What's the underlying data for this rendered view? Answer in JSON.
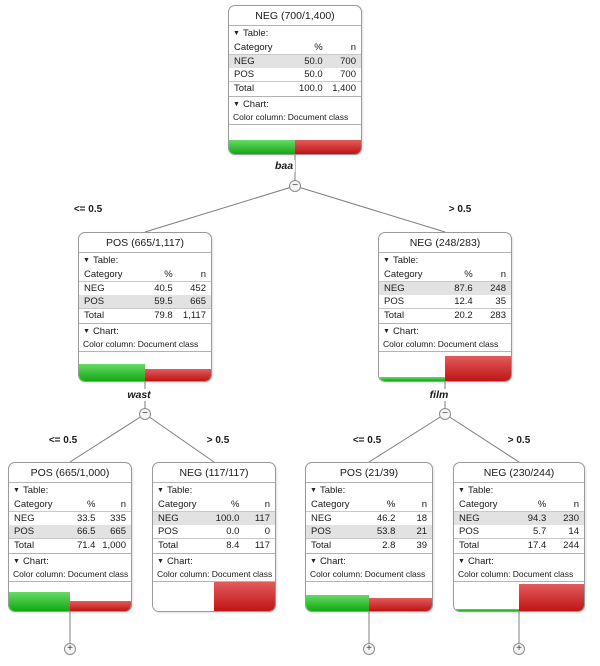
{
  "labels": {
    "table_section": "Table:",
    "chart_section": "Chart:",
    "color_column": "Color column: Document class",
    "col_category": "Category",
    "col_percent": "%",
    "col_n": "n",
    "total_row": "Total"
  },
  "glyphs": {
    "section_triangle": "▼",
    "collapse_minus": "−",
    "expand_plus": "+"
  },
  "colors": {
    "pos_bar_green": "#12a812",
    "neg_bar_red": "#bf1414",
    "highlight_row": "#e2e2e2"
  },
  "split_labels": [
    "baa",
    "wast",
    "film"
  ],
  "branch_labels": [
    "<= 0.5",
    "> 0.5",
    "<= 0.5",
    "> 0.5",
    "<= 0.5",
    "> 0.5"
  ],
  "nodes": [
    {
      "title": "NEG (700/1,400)",
      "rows": [
        {
          "category": "NEG",
          "pct": "50.0",
          "n": "700",
          "highlight": true
        },
        {
          "category": "POS",
          "pct": "50.0",
          "n": "700",
          "highlight": false
        }
      ],
      "total": {
        "pct": "100.0",
        "n": "1,400"
      },
      "bars": {
        "green_pct": 50.0,
        "red_pct": 50.0
      }
    },
    {
      "title": "POS (665/1,117)",
      "rows": [
        {
          "category": "NEG",
          "pct": "40.5",
          "n": "452",
          "highlight": false
        },
        {
          "category": "POS",
          "pct": "59.5",
          "n": "665",
          "highlight": true
        }
      ],
      "total": {
        "pct": "79.8",
        "n": "1,117"
      },
      "bars": {
        "green_pct": 59.5,
        "red_pct": 40.5
      }
    },
    {
      "title": "NEG (248/283)",
      "rows": [
        {
          "category": "NEG",
          "pct": "87.6",
          "n": "248",
          "highlight": true
        },
        {
          "category": "POS",
          "pct": "12.4",
          "n": "35",
          "highlight": false
        }
      ],
      "total": {
        "pct": "20.2",
        "n": "283"
      },
      "bars": {
        "green_pct": 12.4,
        "red_pct": 87.6
      }
    },
    {
      "title": "POS (665/1,000)",
      "rows": [
        {
          "category": "NEG",
          "pct": "33.5",
          "n": "335",
          "highlight": false
        },
        {
          "category": "POS",
          "pct": "66.5",
          "n": "665",
          "highlight": true
        }
      ],
      "total": {
        "pct": "71.4",
        "n": "1,000"
      },
      "bars": {
        "green_pct": 66.5,
        "red_pct": 33.5
      }
    },
    {
      "title": "NEG (117/117)",
      "rows": [
        {
          "category": "NEG",
          "pct": "100.0",
          "n": "117",
          "highlight": true
        },
        {
          "category": "POS",
          "pct": "0.0",
          "n": "0",
          "highlight": false
        }
      ],
      "total": {
        "pct": "8.4",
        "n": "117"
      },
      "bars": {
        "green_pct": 0.0,
        "red_pct": 100.0
      }
    },
    {
      "title": "POS (21/39)",
      "rows": [
        {
          "category": "NEG",
          "pct": "46.2",
          "n": "18",
          "highlight": false
        },
        {
          "category": "POS",
          "pct": "53.8",
          "n": "21",
          "highlight": true
        }
      ],
      "total": {
        "pct": "2.8",
        "n": "39"
      },
      "bars": {
        "green_pct": 53.8,
        "red_pct": 46.2
      }
    },
    {
      "title": "NEG (230/244)",
      "rows": [
        {
          "category": "NEG",
          "pct": "94.3",
          "n": "230",
          "highlight": true
        },
        {
          "category": "POS",
          "pct": "5.7",
          "n": "14",
          "highlight": false
        }
      ],
      "total": {
        "pct": "17.4",
        "n": "244"
      },
      "bars": {
        "green_pct": 5.7,
        "red_pct": 94.3
      }
    }
  ]
}
